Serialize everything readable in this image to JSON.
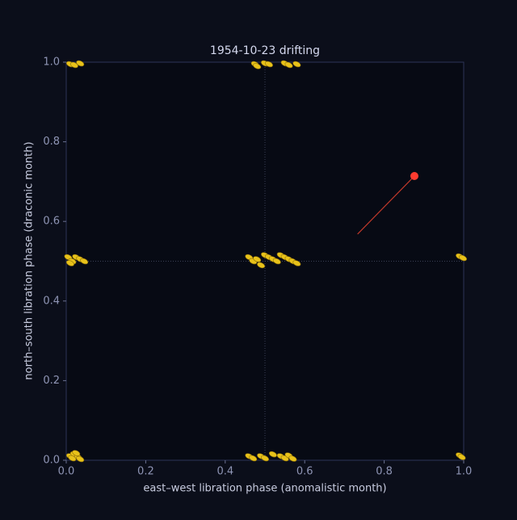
{
  "chart_data": {
    "type": "scatter",
    "title": "1954-10-23   drifting",
    "x_label": "east–west libration phase (anomalistic month)",
    "y_label": "north–south libration phase (draconic month)",
    "xlim": [
      0,
      1
    ],
    "ylim": [
      0,
      1
    ],
    "xticks": [
      {
        "value": 0,
        "label": "0.0"
      },
      0.2,
      0.4,
      0.6,
      0.8,
      {
        "value": 1,
        "label": "1.0"
      }
    ],
    "yticks": [
      {
        "value": 0,
        "label": "0.0"
      },
      0.2,
      0.4,
      0.6,
      0.8,
      {
        "value": 1,
        "label": "1.0"
      }
    ],
    "vlines": [
      0.5
    ],
    "hlines": [
      0.5
    ],
    "series": [
      {
        "type": "scatter",
        "color": "#e8c21a",
        "x": [
          0.01,
          0.02,
          0.03,
          0.015,
          0.035,
          0.025,
          0.46,
          0.47,
          0.49,
          0.5,
          0.52,
          0.54,
          0.55,
          0.56,
          0.57,
          0.99,
          0.995,
          0.005,
          0.015,
          0.025,
          0.035,
          0.045,
          0.01,
          0.46,
          0.47,
          0.48,
          0.49,
          0.5,
          0.51,
          0.52,
          0.53,
          0.54,
          0.55,
          0.56,
          0.57,
          0.58,
          0.99,
          0.998,
          0.01,
          0.02,
          0.035,
          0.475,
          0.48,
          0.5,
          0.51,
          0.55,
          0.56,
          0.58
        ],
        "values": [
          0.01,
          0.015,
          0.008,
          0.005,
          0.003,
          0.018,
          0.01,
          0.005,
          0.01,
          0.005,
          0.015,
          0.01,
          0.005,
          0.012,
          0.004,
          0.012,
          0.008,
          0.51,
          0.5,
          0.51,
          0.505,
          0.5,
          0.495,
          0.51,
          0.5,
          0.505,
          0.49,
          0.515,
          0.51,
          0.505,
          0.5,
          0.515,
          0.51,
          0.505,
          0.5,
          0.495,
          0.512,
          0.508,
          0.995,
          0.993,
          0.997,
          0.995,
          0.99,
          0.997,
          0.995,
          0.997,
          0.993,
          0.995
        ]
      },
      {
        "type": "line",
        "color": "#c0392b",
        "x": [
          0.733,
          0.876
        ],
        "values": [
          0.568,
          0.714
        ]
      },
      {
        "type": "scatter",
        "color": "#ff3b2f",
        "size": 5,
        "x": [
          0.876
        ],
        "values": [
          0.714
        ]
      }
    ]
  }
}
